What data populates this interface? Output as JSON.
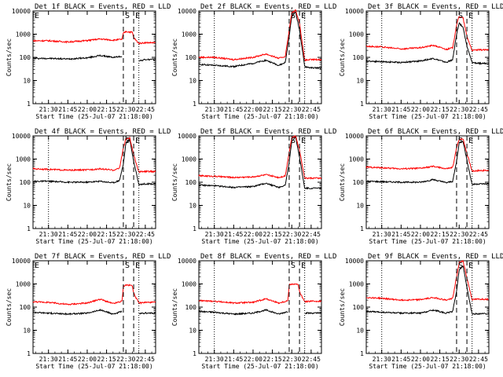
{
  "figure": {
    "x_axis_title": "Start Time (25-Jul-07 21:18:00)",
    "y_axis_title": "Counts/sec",
    "x_tick_labels": [
      "21:30",
      "21:45",
      "22:00",
      "22:15",
      "22:30",
      "22:45"
    ],
    "y_tick_labels": [
      "1",
      "10",
      "100",
      "1000",
      "10000"
    ],
    "colors": {
      "events": "#000000",
      "lld": "#ff0000",
      "axes": "#000000"
    }
  },
  "chart_data": [
    {
      "type": "line",
      "title": "Det 1f BLACK = Events, RED = LLD",
      "xlabel": "Start Time (25-Jul-07 21:18:00)",
      "ylabel": "Counts/sec",
      "xlim": [
        "21:18",
        "22:53"
      ],
      "ylim": [
        1,
        10000
      ],
      "y_scale": "log",
      "markers": [
        {
          "label": "E",
          "time": "21:18",
          "style": "dotted"
        },
        {
          "label": "S",
          "time": "22:28",
          "style": "dashed"
        },
        {
          "label": "E",
          "time": "22:36",
          "style": "dashed"
        },
        {
          "label": "",
          "time": "22:40",
          "style": "dotted"
        }
      ],
      "series": [
        {
          "name": "Events",
          "color": "#000000",
          "x": [
            "21:18",
            "21:30",
            "21:45",
            "22:00",
            "22:10",
            "22:20",
            "22:27",
            "22:28",
            "22:30",
            "22:35",
            "22:36",
            "22:40",
            "22:45",
            "22:53"
          ],
          "values": [
            90,
            90,
            85,
            95,
            120,
            100,
            110,
            null,
            null,
            null,
            null,
            70,
            80,
            80
          ]
        },
        {
          "name": "LLD",
          "color": "#ff0000",
          "x": [
            "21:18",
            "21:30",
            "21:45",
            "22:00",
            "22:10",
            "22:20",
            "22:27",
            "22:28",
            "22:30",
            "22:35",
            "22:36",
            "22:40",
            "22:45",
            "22:53"
          ],
          "values": [
            520,
            520,
            460,
            530,
            620,
            550,
            600,
            1100,
            1300,
            1200,
            700,
            400,
            430,
            430
          ]
        }
      ]
    },
    {
      "type": "line",
      "title": "Det 2f BLACK = Events, RED = LLD",
      "xlabel": "Start Time (25-Jul-07 21:18:00)",
      "ylabel": "Counts/sec",
      "xlim": [
        "21:18",
        "22:53"
      ],
      "ylim": [
        1,
        10000
      ],
      "y_scale": "log",
      "markers": [
        {
          "label": "",
          "time": "21:30",
          "style": "dotted"
        },
        {
          "label": "S",
          "time": "22:28",
          "style": "dashed"
        },
        {
          "label": "E",
          "time": "22:36",
          "style": "dashed"
        },
        {
          "label": "",
          "time": "22:40",
          "style": "dotted"
        }
      ],
      "series": [
        {
          "name": "Events",
          "color": "#000000",
          "x": [
            "21:18",
            "21:30",
            "21:45",
            "22:00",
            "22:10",
            "22:20",
            "22:25",
            "22:28",
            "22:30",
            "22:33",
            "22:36",
            "22:40",
            "22:45",
            "22:53"
          ],
          "values": [
            50,
            45,
            40,
            55,
            75,
            45,
            60,
            800,
            6000,
            9000,
            1500,
            40,
            35,
            35
          ]
        },
        {
          "name": "LLD",
          "color": "#ff0000",
          "x": [
            "21:18",
            "21:30",
            "21:45",
            "22:00",
            "22:10",
            "22:20",
            "22:25",
            "22:28",
            "22:30",
            "22:33",
            "22:36",
            "22:40",
            "22:45",
            "22:53"
          ],
          "values": [
            100,
            100,
            80,
            100,
            140,
            90,
            110,
            1500,
            8000,
            11000,
            3000,
            75,
            80,
            80
          ]
        }
      ]
    },
    {
      "type": "line",
      "title": "Det 3f BLACK = Events, RED = LLD",
      "xlabel": "Start Time (25-Jul-07 21:18:00)",
      "ylabel": "Counts/sec",
      "xlim": [
        "21:18",
        "22:53"
      ],
      "ylim": [
        1,
        10000
      ],
      "y_scale": "log",
      "markers": [
        {
          "label": "",
          "time": "21:30",
          "style": "dotted"
        },
        {
          "label": "S",
          "time": "22:28",
          "style": "dashed"
        },
        {
          "label": "E",
          "time": "22:36",
          "style": "dashed"
        },
        {
          "label": "",
          "time": "22:40",
          "style": "dotted"
        }
      ],
      "series": [
        {
          "name": "Events",
          "color": "#000000",
          "x": [
            "21:18",
            "21:30",
            "21:45",
            "22:00",
            "22:10",
            "22:20",
            "22:25",
            "22:28",
            "22:30",
            "22:33",
            "22:36",
            "22:40",
            "22:45",
            "22:53"
          ],
          "values": [
            70,
            65,
            60,
            70,
            90,
            60,
            80,
            1000,
            3000,
            2000,
            300,
            60,
            55,
            55
          ]
        },
        {
          "name": "LLD",
          "color": "#ff0000",
          "x": [
            "21:18",
            "21:30",
            "21:45",
            "22:00",
            "22:10",
            "22:20",
            "22:25",
            "22:28",
            "22:30",
            "22:33",
            "22:36",
            "22:40",
            "22:45",
            "22:53"
          ],
          "values": [
            300,
            280,
            230,
            260,
            330,
            220,
            260,
            2500,
            6000,
            5000,
            800,
            200,
            210,
            210
          ]
        }
      ]
    },
    {
      "type": "line",
      "title": "Det 4f BLACK = Events, RED = LLD",
      "xlabel": "Start Time (25-Jul-07 21:18:00)",
      "ylabel": "Counts/sec",
      "xlim": [
        "21:18",
        "22:53"
      ],
      "ylim": [
        1,
        10000
      ],
      "y_scale": "log",
      "markers": [
        {
          "label": "",
          "time": "21:30",
          "style": "dotted"
        },
        {
          "label": "S",
          "time": "22:28",
          "style": "dashed"
        },
        {
          "label": "E",
          "time": "22:36",
          "style": "dashed"
        },
        {
          "label": "",
          "time": "22:40",
          "style": "dotted"
        }
      ],
      "series": [
        {
          "name": "Events",
          "color": "#000000",
          "x": [
            "21:18",
            "21:30",
            "21:45",
            "22:00",
            "22:10",
            "22:20",
            "22:25",
            "22:28",
            "22:30",
            "22:33",
            "22:36",
            "22:40",
            "22:45",
            "22:53"
          ],
          "values": [
            110,
            110,
            100,
            100,
            110,
            95,
            120,
            600,
            5000,
            7000,
            800,
            80,
            85,
            85
          ]
        },
        {
          "name": "LLD",
          "color": "#ff0000",
          "x": [
            "21:18",
            "21:30",
            "21:45",
            "22:00",
            "22:10",
            "22:20",
            "22:25",
            "22:28",
            "22:30",
            "22:33",
            "22:36",
            "22:40",
            "22:45",
            "22:53"
          ],
          "values": [
            380,
            360,
            330,
            340,
            380,
            330,
            400,
            3000,
            7500,
            8000,
            1500,
            280,
            290,
            290
          ]
        }
      ]
    },
    {
      "type": "line",
      "title": "Det 5f BLACK = Events, RED = LLD",
      "xlabel": "Start Time (25-Jul-07 21:18:00)",
      "ylabel": "Counts/sec",
      "xlim": [
        "21:18",
        "22:53"
      ],
      "ylim": [
        1,
        10000
      ],
      "y_scale": "log",
      "markers": [
        {
          "label": "",
          "time": "21:30",
          "style": "dotted"
        },
        {
          "label": "S",
          "time": "22:28",
          "style": "dashed"
        },
        {
          "label": "E",
          "time": "22:36",
          "style": "dashed"
        },
        {
          "label": "",
          "time": "22:40",
          "style": "dotted"
        }
      ],
      "series": [
        {
          "name": "Events",
          "color": "#000000",
          "x": [
            "21:18",
            "21:30",
            "21:45",
            "22:00",
            "22:10",
            "22:20",
            "22:25",
            "22:28",
            "22:30",
            "22:33",
            "22:36",
            "22:40",
            "22:45",
            "22:53"
          ],
          "values": [
            75,
            70,
            60,
            65,
            90,
            60,
            75,
            700,
            6000,
            9000,
            1200,
            55,
            55,
            55
          ]
        },
        {
          "name": "LLD",
          "color": "#ff0000",
          "x": [
            "21:18",
            "21:30",
            "21:45",
            "22:00",
            "22:10",
            "22:20",
            "22:25",
            "22:28",
            "22:30",
            "22:33",
            "22:36",
            "22:40",
            "22:45",
            "22:53"
          ],
          "values": [
            190,
            180,
            160,
            170,
            210,
            160,
            190,
            2000,
            8000,
            10000,
            2500,
            150,
            150,
            150
          ]
        }
      ]
    },
    {
      "type": "line",
      "title": "Det 6f BLACK = Events, RED = LLD",
      "xlabel": "Start Time (25-Jul-07 21:18:00)",
      "ylabel": "Counts/sec",
      "xlim": [
        "21:18",
        "22:53"
      ],
      "ylim": [
        1,
        10000
      ],
      "y_scale": "log",
      "markers": [
        {
          "label": "",
          "time": "21:30",
          "style": "dotted"
        },
        {
          "label": "S",
          "time": "22:28",
          "style": "dashed"
        },
        {
          "label": "E",
          "time": "22:36",
          "style": "dashed"
        },
        {
          "label": "",
          "time": "22:40",
          "style": "dotted"
        }
      ],
      "series": [
        {
          "name": "Events",
          "color": "#000000",
          "x": [
            "21:18",
            "21:30",
            "21:45",
            "22:00",
            "22:10",
            "22:20",
            "22:25",
            "22:28",
            "22:30",
            "22:33",
            "22:36",
            "22:40",
            "22:45",
            "22:53"
          ],
          "values": [
            110,
            105,
            100,
            100,
            130,
            95,
            110,
            800,
            5000,
            6000,
            900,
            80,
            85,
            85
          ]
        },
        {
          "name": "LLD",
          "color": "#ff0000",
          "x": [
            "21:18",
            "21:30",
            "21:45",
            "22:00",
            "22:10",
            "22:20",
            "22:25",
            "22:28",
            "22:30",
            "22:33",
            "22:36",
            "22:40",
            "22:45",
            "22:53"
          ],
          "values": [
            450,
            420,
            380,
            400,
            480,
            380,
            430,
            3000,
            7000,
            7500,
            1800,
            300,
            320,
            320
          ]
        }
      ]
    },
    {
      "type": "line",
      "title": "Det 7f BLACK = Events, RED = LLD",
      "xlabel": "Start Time (25-Jul-07 21:18:00)",
      "ylabel": "Counts/sec",
      "xlim": [
        "21:18",
        "22:53"
      ],
      "ylim": [
        1,
        10000
      ],
      "y_scale": "log",
      "markers": [
        {
          "label": "E",
          "time": "21:18",
          "style": "dotted"
        },
        {
          "label": "S",
          "time": "22:28",
          "style": "dashed"
        },
        {
          "label": "E",
          "time": "22:36",
          "style": "dashed"
        },
        {
          "label": "",
          "time": "22:40",
          "style": "dotted"
        }
      ],
      "series": [
        {
          "name": "Events",
          "color": "#000000",
          "x": [
            "21:18",
            "21:30",
            "21:45",
            "22:00",
            "22:10",
            "22:20",
            "22:27",
            "22:28",
            "22:30",
            "22:35",
            "22:36",
            "22:40",
            "22:45",
            "22:53"
          ],
          "values": [
            60,
            55,
            50,
            55,
            75,
            50,
            65,
            null,
            null,
            null,
            null,
            50,
            55,
            55
          ]
        },
        {
          "name": "LLD",
          "color": "#ff0000",
          "x": [
            "21:18",
            "21:30",
            "21:45",
            "22:00",
            "22:10",
            "22:20",
            "22:27",
            "22:28",
            "22:30",
            "22:35",
            "22:36",
            "22:40",
            "22:45",
            "22:53"
          ],
          "values": [
            170,
            160,
            130,
            150,
            220,
            140,
            180,
            800,
            900,
            850,
            400,
            150,
            160,
            160
          ]
        }
      ]
    },
    {
      "type": "line",
      "title": "Det 8f BLACK = Events, RED = LLD",
      "xlabel": "Start Time (25-Jul-07 21:18:00)",
      "ylabel": "Counts/sec",
      "xlim": [
        "21:18",
        "22:53"
      ],
      "ylim": [
        1,
        10000
      ],
      "y_scale": "log",
      "markers": [
        {
          "label": "",
          "time": "21:30",
          "style": "dotted"
        },
        {
          "label": "S",
          "time": "22:28",
          "style": "dashed"
        },
        {
          "label": "E",
          "time": "22:36",
          "style": "dashed"
        },
        {
          "label": "",
          "time": "22:40",
          "style": "dotted"
        }
      ],
      "series": [
        {
          "name": "Events",
          "color": "#000000",
          "x": [
            "21:18",
            "21:30",
            "21:45",
            "22:00",
            "22:10",
            "22:20",
            "22:27",
            "22:28",
            "22:30",
            "22:35",
            "22:36",
            "22:40",
            "22:45",
            "22:53"
          ],
          "values": [
            65,
            60,
            50,
            55,
            75,
            50,
            65,
            null,
            null,
            null,
            null,
            55,
            55,
            55
          ]
        },
        {
          "name": "LLD",
          "color": "#ff0000",
          "x": [
            "21:18",
            "21:30",
            "21:45",
            "22:00",
            "22:10",
            "22:20",
            "22:27",
            "22:28",
            "22:30",
            "22:35",
            "22:36",
            "22:40",
            "22:45",
            "22:53"
          ],
          "values": [
            190,
            180,
            150,
            160,
            230,
            150,
            190,
            900,
            1000,
            950,
            450,
            170,
            180,
            180
          ]
        }
      ]
    },
    {
      "type": "line",
      "title": "Det 9f BLACK = Events, RED = LLD",
      "xlabel": "Start Time (25-Jul-07 21:18:00)",
      "ylabel": "Counts/sec",
      "xlim": [
        "21:18",
        "22:53"
      ],
      "ylim": [
        1,
        10000
      ],
      "y_scale": "log",
      "markers": [
        {
          "label": "",
          "time": "21:30",
          "style": "dotted"
        },
        {
          "label": "S",
          "time": "22:28",
          "style": "dashed"
        },
        {
          "label": "E",
          "time": "22:36",
          "style": "dashed"
        },
        {
          "label": "",
          "time": "22:40",
          "style": "dotted"
        }
      ],
      "series": [
        {
          "name": "Events",
          "color": "#000000",
          "x": [
            "21:18",
            "21:30",
            "21:45",
            "22:00",
            "22:10",
            "22:20",
            "22:25",
            "22:28",
            "22:30",
            "22:33",
            "22:36",
            "22:40",
            "22:45",
            "22:53"
          ],
          "values": [
            65,
            60,
            55,
            55,
            75,
            55,
            65,
            500,
            4000,
            6000,
            700,
            50,
            52,
            52
          ]
        },
        {
          "name": "LLD",
          "color": "#ff0000",
          "x": [
            "21:18",
            "21:30",
            "21:45",
            "22:00",
            "22:10",
            "22:20",
            "22:25",
            "22:28",
            "22:30",
            "22:33",
            "22:36",
            "22:40",
            "22:45",
            "22:53"
          ],
          "values": [
            260,
            240,
            200,
            210,
            260,
            200,
            240,
            2000,
            8000,
            10000,
            1800,
            210,
            220,
            220
          ]
        }
      ]
    }
  ]
}
